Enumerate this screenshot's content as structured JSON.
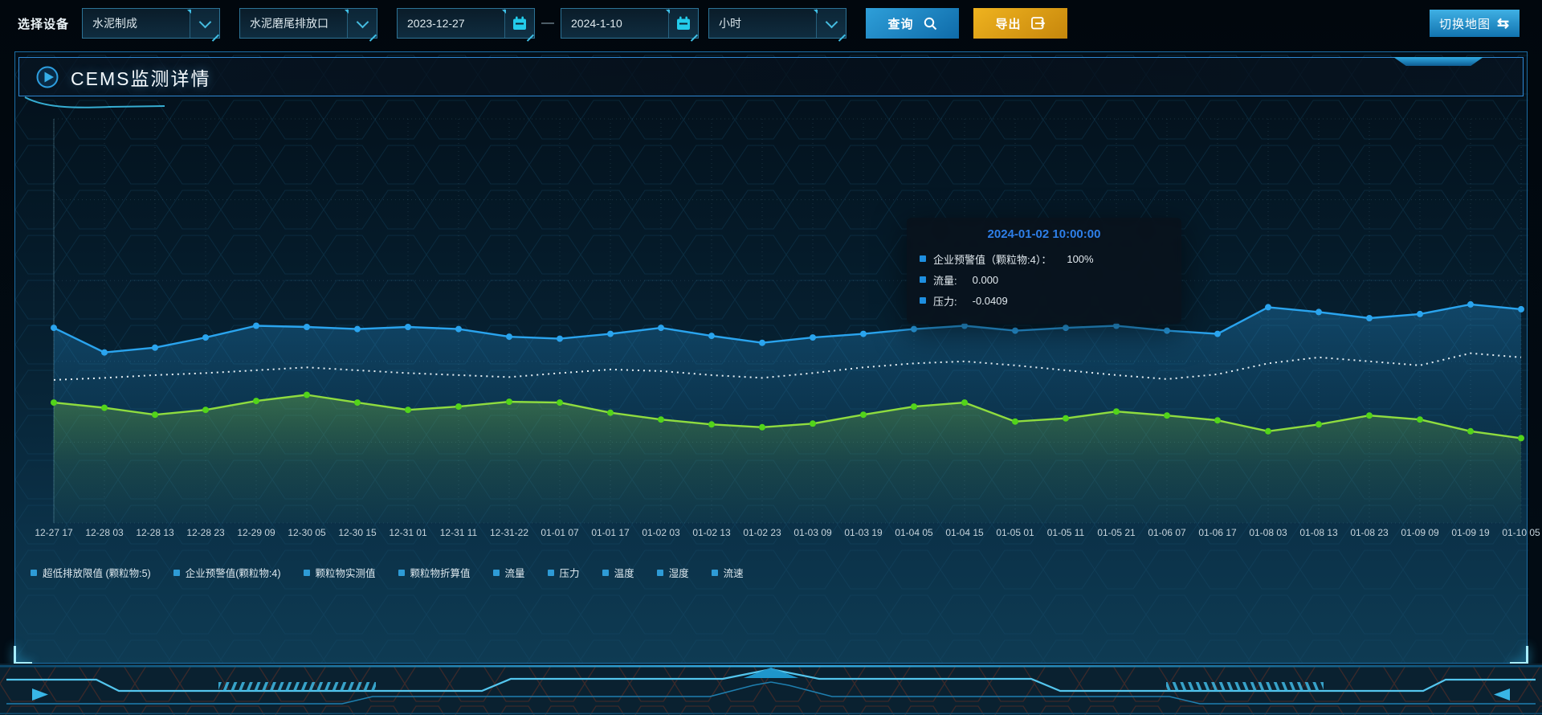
{
  "toolbar": {
    "device_label": "选择设备",
    "selects": [
      {
        "value": "水泥制成"
      },
      {
        "value": "水泥磨尾排放口"
      },
      {
        "value": "小时"
      }
    ],
    "date_start": "2023-12-27",
    "date_separator": "—",
    "date_end": "2024-1-10",
    "query_label": "查询",
    "export_label": "导出",
    "switch_map_label": "切换地图",
    "switch_map_icon_glyph": "⇆"
  },
  "panel": {
    "title": "CEMS监测详情"
  },
  "tooltip": {
    "title": "2024-01-02 10:00:00",
    "items": [
      {
        "label": "企业预警值（颗粒物:4）：",
        "value": "100%"
      },
      {
        "label": "流量:",
        "value": "0.000"
      },
      {
        "label": "压力:",
        "value": "-0.0409"
      }
    ]
  },
  "legend": [
    "超低排放限值 (颗粒物:5)",
    "企业预警值(颗粒物:4)",
    "颗粒物实测值",
    "颗粒物折算值",
    "流量",
    "压力",
    "温度",
    "湿度",
    "流速"
  ],
  "accents": {
    "primary_blue": "#2AA4EE",
    "line_green": "#8FDC3F",
    "dot_green": "#52D41A",
    "dotted_white": "#E6EFF4",
    "export_orange": "#E8A317",
    "icon_cyan": "#23CBEA",
    "tooltip_title_blue": "#2E7FE8",
    "legend_marker_blue": "#2E9BD6"
  },
  "icons": {
    "query": "search-icon",
    "export": "export-arrow-icon",
    "dates": "calendar-icon",
    "selects": "chevron-down-icon",
    "switch_map": "swap-arrows-icon",
    "title": "play-icon"
  },
  "chart_data": {
    "type": "line",
    "title": "",
    "xlabel": "",
    "ylabel": "",
    "ylim": [
      0,
      100
    ],
    "y_axis_visible": false,
    "grid": "dotted",
    "legend_position": "bottom-left",
    "x": [
      "12-27 17",
      "12-28 03",
      "12-28 13",
      "12-28 23",
      "12-29 09",
      "12-30 05",
      "12-30 15",
      "12-31 01",
      "12-31 11",
      "12-31-22",
      "01-01 07",
      "01-01 17",
      "01-02 03",
      "01-02 13",
      "01-02 23",
      "01-03 09",
      "01-03 19",
      "01-04 05",
      "01-04 15",
      "01-05 01",
      "01-05 11",
      "01-05 21",
      "01-06 07",
      "01-06 17",
      "01-08 03",
      "01-08 13",
      "01-08 23",
      "01-09 09",
      "01-09 19",
      "01-10 05"
    ],
    "series": [
      {
        "name": "企业预警值(颗粒物:4)",
        "color": "#2AA4EE",
        "dot_color": "#2AA4EE",
        "style": "solid-dots",
        "area": true,
        "values": [
          48.3,
          42.2,
          43.4,
          45.9,
          48.8,
          48.5,
          48,
          48.5,
          48,
          46.1,
          45.6,
          46.8,
          48.3,
          46.3,
          44.6,
          45.9,
          46.8,
          48,
          48.8,
          47.6,
          48.3,
          48.8,
          47.6,
          46.8,
          53.4,
          52.2,
          50.7,
          51.7,
          54.1,
          52.9
        ]
      },
      {
        "name": "压力",
        "color": "#E6EFF4",
        "style": "dotted",
        "area": false,
        "values": [
          35.4,
          35.9,
          36.6,
          37.1,
          37.8,
          38.5,
          37.8,
          37.1,
          36.6,
          36.1,
          37.1,
          38,
          37.6,
          36.6,
          35.9,
          37.1,
          38.5,
          39.5,
          40,
          39,
          37.8,
          36.6,
          35.6,
          36.8,
          39.5,
          41,
          40,
          39,
          42,
          41
        ]
      },
      {
        "name": "流量",
        "color": "#8FDC3F",
        "dot_color": "#52D41A",
        "style": "solid-dots",
        "area": true,
        "values": [
          29.8,
          28.5,
          26.8,
          28,
          30.2,
          31.7,
          29.8,
          28,
          28.8,
          30,
          29.8,
          27.3,
          25.6,
          24.4,
          23.7,
          24.6,
          26.8,
          28.8,
          29.8,
          25.1,
          25.9,
          27.6,
          26.6,
          25.4,
          22.7,
          24.4,
          26.6,
          25.6,
          22.7,
          21
        ]
      }
    ]
  }
}
